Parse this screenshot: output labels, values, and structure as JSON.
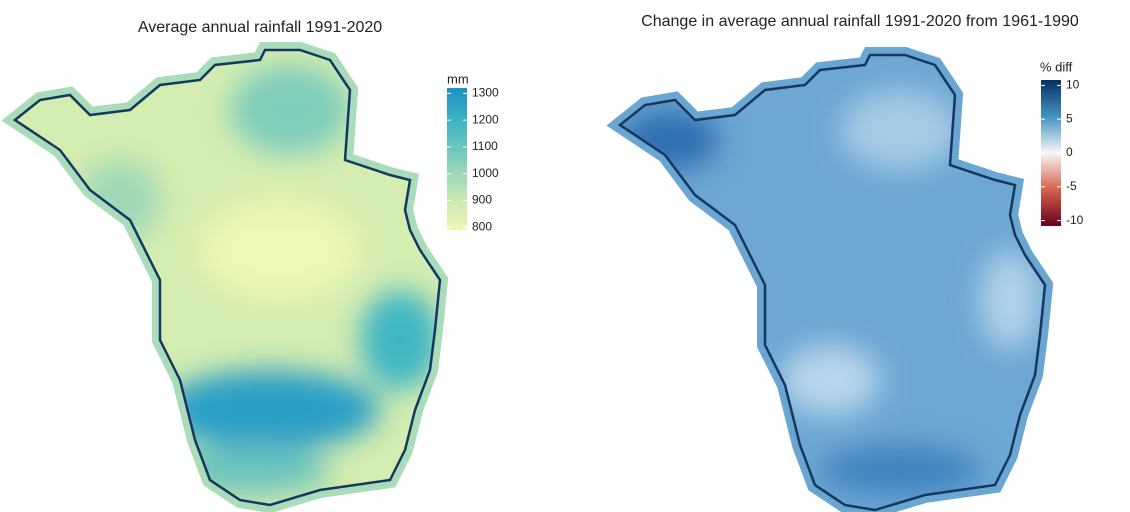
{
  "maps": [
    {
      "title": "Average annual rainfall 1991-2020",
      "legend": {
        "title": "mm",
        "lim": [
          790,
          1320
        ],
        "ticks": [
          800,
          900,
          1000,
          1100,
          1200,
          1300
        ],
        "colors": [
          "#eef7b3",
          "#c3e6b4",
          "#7fcdbb",
          "#41b6c4",
          "#1d91c0"
        ]
      }
    },
    {
      "title": "Change in average annual rainfall 1991-2020 from 1961-1990",
      "legend": {
        "title": "% diff",
        "lim": [
          -10.8,
          10.8
        ],
        "ticks": [
          10,
          5,
          0,
          -5,
          -10
        ],
        "colors": [
          "#67001f",
          "#d6604d",
          "#f7f7f7",
          "#4393c3",
          "#053061"
        ]
      }
    }
  ]
}
